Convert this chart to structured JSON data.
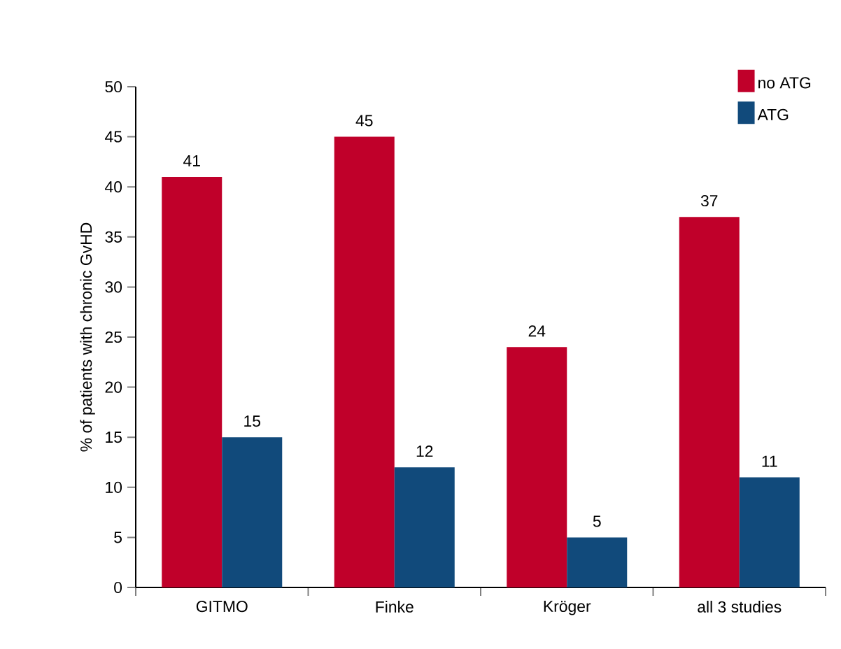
{
  "chart_data": {
    "type": "bar",
    "ylabel": "% of patients with chronic GvHD",
    "categories": [
      "GITMO",
      "Finke",
      "Kröger",
      "all 3 studies"
    ],
    "series": [
      {
        "name": "no ATG",
        "color": "#c0002a",
        "values": [
          41,
          45,
          24,
          37
        ]
      },
      {
        "name": "ATG",
        "color": "#114a7b",
        "values": [
          15,
          12,
          5,
          11
        ]
      }
    ],
    "ylim": [
      0,
      50
    ],
    "yticks": [
      0,
      5,
      10,
      15,
      20,
      25,
      30,
      35,
      40,
      45,
      50
    ],
    "data_labels": true,
    "legend": "top right",
    "grid": false
  }
}
